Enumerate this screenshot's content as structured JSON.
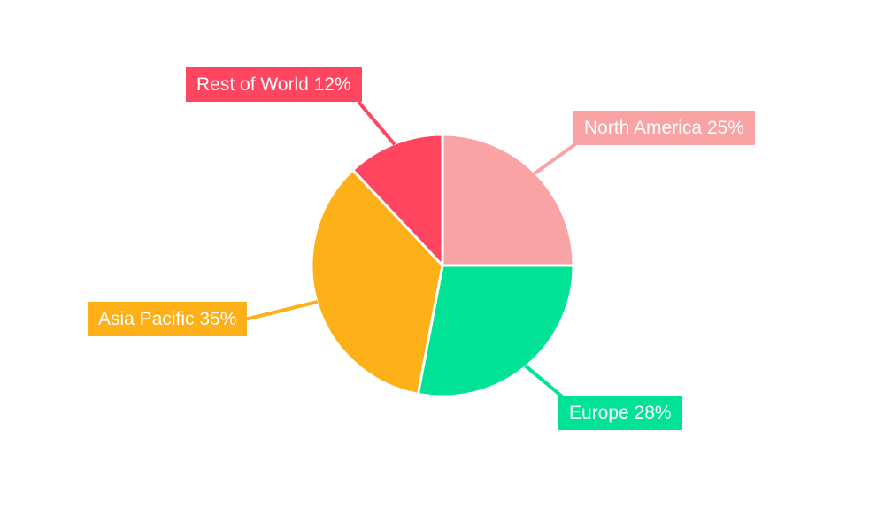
{
  "chart_data": {
    "type": "pie",
    "title": "",
    "background": "#ffffff",
    "direction": "clockwise",
    "start_angle_deg": 0,
    "stroke_color": "#ffffff",
    "label_text_color": "#ffffff",
    "slices": [
      {
        "name": "North America",
        "value_pct": 25,
        "label": "North America 25%",
        "color": "#F9A3A4"
      },
      {
        "name": "Europe",
        "value_pct": 28,
        "label": "Europe 28%",
        "color": "#00E396"
      },
      {
        "name": "Asia Pacific",
        "value_pct": 35,
        "label": "Asia Pacific 35%",
        "color": "#FEB019"
      },
      {
        "name": "Rest of World",
        "value_pct": 12,
        "label": "Rest of World 12%",
        "color": "#FF4560"
      }
    ]
  }
}
